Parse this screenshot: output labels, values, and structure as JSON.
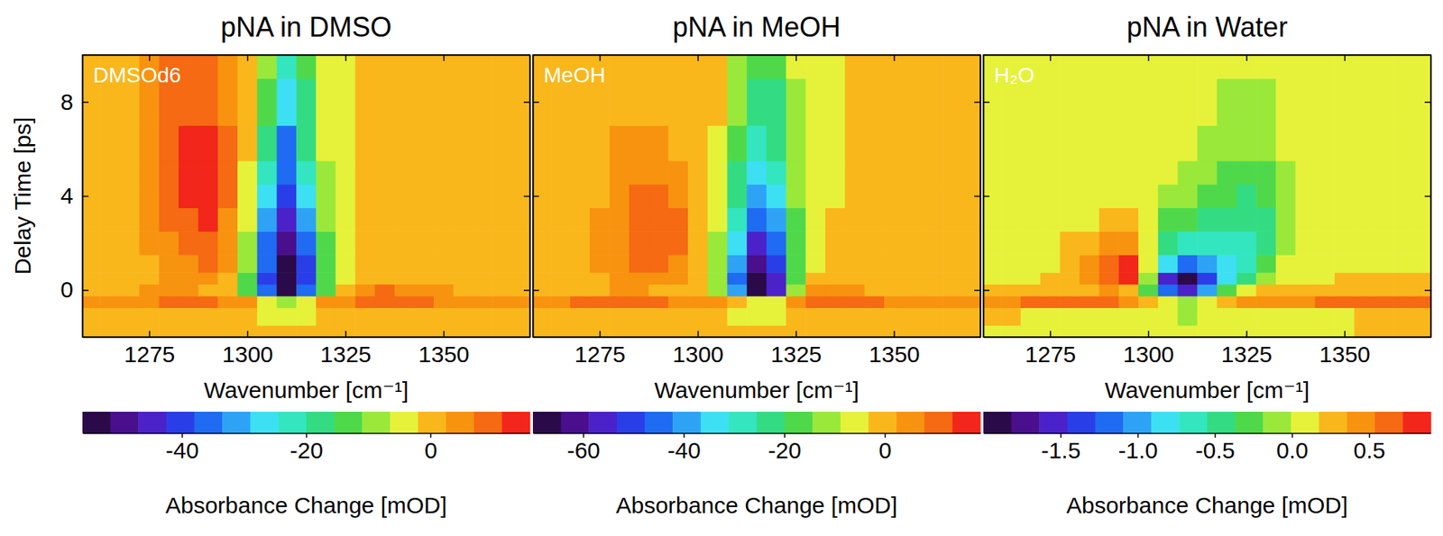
{
  "chart_data": [
    {
      "type": "heatmap",
      "title": "pNA in DMSO",
      "annotation": "DMSOd6",
      "xlabel": "Wavenumber [cm⁻¹]",
      "ylabel": "Delay Time [ps]",
      "x": [
        1260,
        1265,
        1270,
        1275,
        1280,
        1285,
        1290,
        1295,
        1300,
        1305,
        1310,
        1315,
        1320,
        1325,
        1330,
        1335,
        1340,
        1345,
        1350,
        1355,
        1360,
        1365,
        1370
      ],
      "y": [
        -2,
        -1,
        -0.5,
        0,
        0.5,
        1,
        2,
        3,
        4,
        5,
        6,
        8,
        10
      ],
      "z": [
        [
          1,
          1,
          1,
          1,
          1,
          1,
          1,
          1,
          0,
          -1,
          -2,
          -1,
          0,
          1,
          1,
          1,
          1,
          1,
          1,
          1,
          1,
          1,
          1
        ],
        [
          0,
          -1,
          -1,
          -1,
          -1,
          -1,
          0,
          0,
          -2,
          -4,
          -6,
          -4,
          -2,
          0,
          -1,
          -1,
          -1,
          0,
          0,
          0,
          0,
          0,
          0
        ],
        [
          4,
          5,
          6,
          6,
          7,
          7,
          8,
          6,
          3,
          -4,
          -10,
          -5,
          3,
          6,
          8,
          9,
          9,
          8,
          6,
          5,
          5,
          4,
          3
        ],
        [
          2,
          2,
          2,
          3,
          3,
          3,
          2,
          0,
          -12,
          -35,
          -55,
          -38,
          -14,
          2,
          6,
          8,
          6,
          4,
          3,
          2,
          2,
          2,
          2
        ],
        [
          1,
          1,
          1,
          2,
          3,
          4,
          4,
          1,
          -12,
          -40,
          -55,
          -42,
          -15,
          -3,
          1,
          2,
          1,
          1,
          1,
          1,
          1,
          1,
          1
        ],
        [
          1,
          1,
          1,
          2,
          4,
          6,
          7,
          3,
          -10,
          -38,
          -54,
          -40,
          -14,
          -4,
          0,
          1,
          1,
          1,
          1,
          1,
          1,
          1,
          1
        ],
        [
          1,
          1,
          1,
          3,
          6,
          9,
          10,
          5,
          -8,
          -34,
          -50,
          -36,
          -12,
          -4,
          0,
          1,
          1,
          1,
          1,
          1,
          1,
          1,
          1
        ],
        [
          1,
          1,
          2,
          3,
          7,
          11,
          13,
          6,
          -6,
          -30,
          -46,
          -32,
          -10,
          -3,
          0,
          1,
          1,
          1,
          1,
          1,
          1,
          1,
          1
        ],
        [
          1,
          1,
          2,
          4,
          8,
          12,
          13,
          7,
          -4,
          -26,
          -42,
          -28,
          -8,
          -3,
          0,
          1,
          1,
          1,
          1,
          1,
          1,
          1,
          1
        ],
        [
          1,
          1,
          1,
          4,
          8,
          12,
          13,
          7,
          -3,
          -22,
          -38,
          -24,
          -7,
          -3,
          0,
          1,
          1,
          1,
          1,
          1,
          1,
          1,
          1
        ],
        [
          1,
          1,
          1,
          4,
          8,
          12,
          12,
          7,
          -2,
          -18,
          -34,
          -20,
          -6,
          -3,
          0,
          1,
          1,
          1,
          1,
          1,
          1,
          1,
          1
        ],
        [
          1,
          1,
          1,
          3,
          8,
          10,
          10,
          6,
          -1,
          -14,
          -28,
          -16,
          -5,
          -3,
          0,
          1,
          1,
          1,
          1,
          1,
          1,
          1,
          1
        ],
        [
          1,
          1,
          1,
          3,
          8,
          9,
          9,
          5,
          0,
          -10,
          -24,
          -12,
          -4,
          -3,
          0,
          1,
          1,
          1,
          1,
          1,
          1,
          1,
          1
        ]
      ],
      "xlim": [
        1258,
        1372
      ],
      "ylim": [
        -2,
        10
      ],
      "xticks": [
        1275,
        1300,
        1325,
        1350
      ],
      "yticks": [
        0,
        4,
        8
      ],
      "colorbar": {
        "label": "Absorbance Change [mOD]",
        "range": [
          -56,
          16
        ],
        "ticks": [
          -40,
          -20,
          0
        ],
        "colors": [
          "#2b0a4a",
          "#4a0f8c",
          "#4b22c9",
          "#2a3ee8",
          "#1f6bf2",
          "#2ea3f5",
          "#3de0f2",
          "#33e6bf",
          "#33dc82",
          "#4fd94a",
          "#9ae83a",
          "#e6f23a",
          "#f9b71c",
          "#f8930f",
          "#f56a12",
          "#f2261a"
        ]
      }
    },
    {
      "type": "heatmap",
      "title": "pNA in MeOH",
      "annotation": "MeOH",
      "xlabel": "Wavenumber [cm⁻¹]",
      "tick_labels": "x",
      "x": [
        1260,
        1265,
        1270,
        1275,
        1280,
        1285,
        1290,
        1295,
        1300,
        1305,
        1310,
        1315,
        1320,
        1325,
        1330,
        1335,
        1340,
        1345,
        1350,
        1355,
        1360,
        1365,
        1370
      ],
      "y": [
        -2,
        -1,
        -0.5,
        0,
        0.5,
        1,
        2,
        3,
        4,
        5,
        6,
        8,
        10
      ],
      "z": [
        [
          1,
          1,
          1,
          1,
          1,
          1,
          1,
          1,
          1,
          1,
          0,
          -2,
          -2,
          0,
          1,
          1,
          1,
          1,
          1,
          1,
          1,
          1,
          1
        ],
        [
          0,
          0,
          -1,
          -1,
          -1,
          -1,
          -1,
          0,
          0,
          -1,
          -4,
          -6,
          -5,
          -2,
          0,
          0,
          0,
          0,
          0,
          0,
          0,
          0,
          0
        ],
        [
          6,
          7,
          8,
          8,
          8,
          8,
          8,
          7,
          6,
          3,
          -2,
          -8,
          -6,
          3,
          8,
          10,
          10,
          9,
          7,
          5,
          4,
          3,
          3
        ],
        [
          2,
          2,
          2,
          2,
          3,
          3,
          2,
          1,
          -2,
          -12,
          -40,
          -65,
          -55,
          -14,
          3,
          4,
          3,
          2,
          2,
          2,
          2,
          2,
          2
        ],
        [
          1,
          1,
          1,
          2,
          4,
          6,
          6,
          4,
          -2,
          -14,
          -45,
          -66,
          -56,
          -18,
          -2,
          0,
          0,
          1,
          1,
          1,
          1,
          1,
          1
        ],
        [
          1,
          1,
          1,
          3,
          6,
          9,
          9,
          6,
          0,
          -12,
          -42,
          -62,
          -52,
          -18,
          -4,
          -1,
          0,
          1,
          1,
          1,
          1,
          1,
          1
        ],
        [
          1,
          1,
          1,
          3,
          7,
          10,
          10,
          8,
          1,
          -10,
          -36,
          -54,
          -44,
          -16,
          -5,
          -2,
          0,
          0,
          1,
          1,
          1,
          1,
          1
        ],
        [
          1,
          1,
          1,
          3,
          7,
          10,
          10,
          8,
          2,
          -8,
          -30,
          -46,
          -38,
          -15,
          -6,
          -3,
          -1,
          0,
          1,
          1,
          1,
          1,
          1
        ],
        [
          1,
          1,
          1,
          2,
          5,
          8,
          8,
          6,
          2,
          -6,
          -24,
          -38,
          -32,
          -13,
          -7,
          -4,
          -2,
          0,
          1,
          1,
          1,
          1,
          1
        ],
        [
          1,
          1,
          1,
          2,
          3,
          4,
          4,
          3,
          1,
          -5,
          -20,
          -32,
          -28,
          -12,
          -8,
          -5,
          -2,
          -1,
          1,
          1,
          1,
          1,
          1
        ],
        [
          1,
          1,
          1,
          2,
          3,
          3,
          3,
          2,
          1,
          -4,
          -16,
          -28,
          -24,
          -11,
          -8,
          -5,
          -2,
          -1,
          0,
          1,
          1,
          1,
          1
        ],
        [
          1,
          1,
          1,
          2,
          2,
          2,
          2,
          2,
          1,
          -3,
          -12,
          -22,
          -20,
          -10,
          -7,
          -5,
          -2,
          -2,
          0,
          1,
          1,
          1,
          1
        ],
        [
          1,
          1,
          1,
          2,
          2,
          2,
          2,
          2,
          1,
          -2,
          -9,
          -18,
          -16,
          -8,
          -6,
          -4,
          -2,
          -2,
          0,
          1,
          1,
          1,
          1
        ]
      ],
      "xlim": [
        1258,
        1372
      ],
      "ylim": [
        -2,
        10
      ],
      "xticks": [
        1275,
        1300,
        1325,
        1350
      ],
      "yticks": [
        0,
        4,
        8
      ],
      "colorbar": {
        "label": "Absorbance Change [mOD]",
        "range": [
          -70,
          19
        ],
        "ticks": [
          -60,
          -40,
          -20,
          0
        ],
        "colors": [
          "#2b0a4a",
          "#4a0f8c",
          "#4b22c9",
          "#2a3ee8",
          "#1f6bf2",
          "#2ea3f5",
          "#3de0f2",
          "#33e6bf",
          "#33dc82",
          "#4fd94a",
          "#9ae83a",
          "#e6f23a",
          "#f9b71c",
          "#f8930f",
          "#f56a12",
          "#f2261a"
        ]
      }
    },
    {
      "type": "heatmap",
      "title": "pNA in Water",
      "annotation": "H₂O",
      "xlabel": "Wavenumber [cm⁻¹]",
      "tick_labels": "x",
      "x": [
        1260,
        1265,
        1270,
        1275,
        1280,
        1285,
        1290,
        1295,
        1300,
        1305,
        1310,
        1315,
        1320,
        1325,
        1330,
        1335,
        1340,
        1345,
        1350,
        1355,
        1360,
        1365,
        1370
      ],
      "y": [
        -2,
        -1,
        -0.5,
        0,
        0.5,
        1,
        2,
        3,
        4,
        5,
        6,
        8,
        10
      ],
      "z": [
        [
          0.1,
          0.1,
          0.05,
          0.05,
          0.05,
          0.05,
          0.05,
          0.05,
          0.05,
          0.05,
          0.05,
          0.05,
          0.05,
          0.05,
          0.05,
          0.1,
          0.1,
          0.1,
          0.1,
          0.2,
          0.2,
          0.2,
          0.2
        ],
        [
          0.2,
          0.2,
          0.1,
          0.1,
          0.1,
          0.1,
          0.05,
          0.05,
          0.05,
          0,
          -0.05,
          0,
          0.05,
          0.05,
          0.1,
          0.1,
          0.1,
          0.1,
          0.1,
          0.2,
          0.2,
          0.2,
          0.2
        ],
        [
          0.5,
          0.5,
          0.55,
          0.55,
          0.6,
          0.6,
          0.65,
          0.5,
          0.3,
          0,
          -0.1,
          0,
          0.2,
          0.4,
          0.45,
          0.5,
          0.5,
          0.55,
          0.55,
          0.6,
          0.6,
          0.6,
          0.6
        ],
        [
          0.2,
          0.2,
          0.2,
          0.25,
          0.3,
          0.35,
          0.4,
          0.3,
          -0.3,
          -1.2,
          -1.5,
          -1,
          -0.3,
          0.1,
          0.2,
          0.25,
          0.25,
          0.25,
          0.3,
          0.3,
          0.3,
          0.3,
          0.3
        ],
        [
          0.1,
          0.1,
          0.1,
          0.2,
          0.3,
          0.45,
          0.6,
          0.75,
          -0.1,
          -1.6,
          -1.85,
          -1.4,
          -0.8,
          -0.4,
          -0.1,
          0.1,
          0.1,
          0.1,
          0.2,
          0.2,
          0.2,
          0.2,
          0.2
        ],
        [
          0.05,
          0.05,
          0.1,
          0.15,
          0.3,
          0.5,
          0.7,
          0.8,
          0.1,
          -0.9,
          -1.1,
          -1,
          -0.8,
          -0.6,
          -0.3,
          0,
          0.05,
          0.05,
          0.1,
          0.1,
          0.1,
          0.1,
          0.1
        ],
        [
          0.05,
          0.05,
          0.05,
          0.1,
          0.2,
          0.35,
          0.5,
          0.5,
          0.1,
          -0.4,
          -0.6,
          -0.7,
          -0.65,
          -0.6,
          -0.4,
          -0.1,
          0,
          0.05,
          0.05,
          0.05,
          0.05,
          0.05,
          0.05
        ],
        [
          0.05,
          0.05,
          0.05,
          0.05,
          0.1,
          0.15,
          0.2,
          0.2,
          0.05,
          -0.2,
          -0.35,
          -0.45,
          -0.5,
          -0.5,
          -0.4,
          -0.15,
          0,
          0.05,
          0.05,
          0.05,
          0.05,
          0.05,
          0.05
        ],
        [
          0.05,
          0.05,
          0.05,
          0.05,
          0.05,
          0.1,
          0.1,
          0.1,
          0.05,
          -0.05,
          -0.15,
          -0.25,
          -0.35,
          -0.4,
          -0.35,
          -0.1,
          0,
          0.05,
          0.05,
          0.05,
          0.05,
          0.05,
          0.05
        ],
        [
          0.05,
          0.05,
          0.05,
          0.05,
          0.05,
          0.05,
          0.05,
          0.05,
          0.05,
          0,
          -0.05,
          -0.1,
          -0.2,
          -0.3,
          -0.25,
          -0.05,
          0.05,
          0.05,
          0.05,
          0.05,
          0.05,
          0.05,
          0.05
        ],
        [
          0.05,
          0.05,
          0.05,
          0.05,
          0.05,
          0.05,
          0.05,
          0.05,
          0.05,
          0.05,
          0,
          -0.05,
          -0.1,
          -0.15,
          -0.1,
          0,
          0.05,
          0.05,
          0.05,
          0.05,
          0.05,
          0.05,
          0.05
        ],
        [
          0.05,
          0.05,
          0.05,
          0.05,
          0.05,
          0.05,
          0.05,
          0.05,
          0.05,
          0.05,
          0.05,
          0,
          -0.05,
          -0.05,
          -0.05,
          0.05,
          0.05,
          0.05,
          0.05,
          0.05,
          0.05,
          0.05,
          0.05
        ],
        [
          0.05,
          0.05,
          0.05,
          0.05,
          0.05,
          0.05,
          0.05,
          0.05,
          0.05,
          0.05,
          0.05,
          0.05,
          0.05,
          0,
          0.05,
          0.05,
          0.05,
          0.05,
          0.05,
          0.05,
          0.05,
          0.05,
          0.05
        ]
      ],
      "xlim": [
        1258,
        1372
      ],
      "ylim": [
        -2,
        10
      ],
      "xticks": [
        1275,
        1300,
        1325,
        1350
      ],
      "yticks": [
        0,
        4,
        8
      ],
      "colorbar": {
        "label": "Absorbance Change [mOD]",
        "range": [
          -2.0,
          0.9
        ],
        "ticks": [
          -1.5,
          {
            "value": -1,
            "label": "-1.0"
          },
          -0.5,
          {
            "value": 0,
            "label": "0.0"
          },
          0.5
        ],
        "colors": [
          "#2b0a4a",
          "#4a0f8c",
          "#4b22c9",
          "#2a3ee8",
          "#1f6bf2",
          "#2ea3f5",
          "#3de0f2",
          "#33e6bf",
          "#33dc82",
          "#4fd94a",
          "#9ae83a",
          "#e6f23a",
          "#f9b71c",
          "#f8930f",
          "#f56a12",
          "#f2261a"
        ]
      }
    }
  ]
}
